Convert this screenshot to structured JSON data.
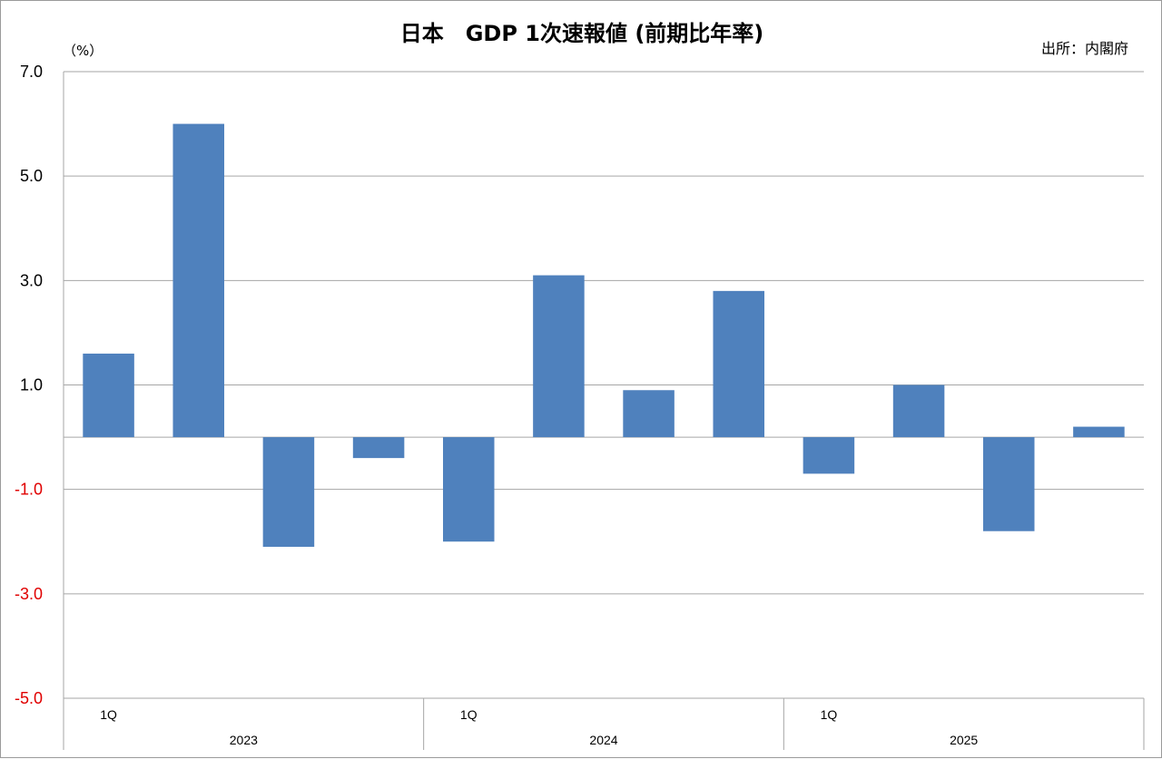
{
  "chart_data": {
    "type": "bar",
    "title": "日本　GDP  1次速報値 (前期比年率)",
    "source": "出所：内閣府",
    "unit_label": "（%）",
    "series": [
      {
        "name": "前期比年率",
        "color": "#4f81bd",
        "values": [
          1.6,
          6.0,
          -2.1,
          -0.4,
          -2.0,
          3.1,
          0.9,
          2.8,
          -0.7,
          1.0,
          -1.8,
          0.2
        ]
      }
    ],
    "years": [
      "2023",
      "2024",
      "2025"
    ],
    "quarter_label": "1Q",
    "ylim": [
      -5.0,
      7.0
    ],
    "y_ticks": [
      7.0,
      5.0,
      3.0,
      1.0,
      -1.0,
      -3.0,
      -5.0
    ],
    "y_tick_labels": [
      "7.0",
      "5.0",
      "3.0",
      "1.0",
      "-1.0",
      "-3.0",
      "-5.0"
    ],
    "positive_tick_color": "#000000",
    "negative_tick_color": "#e00000",
    "grid": true
  }
}
